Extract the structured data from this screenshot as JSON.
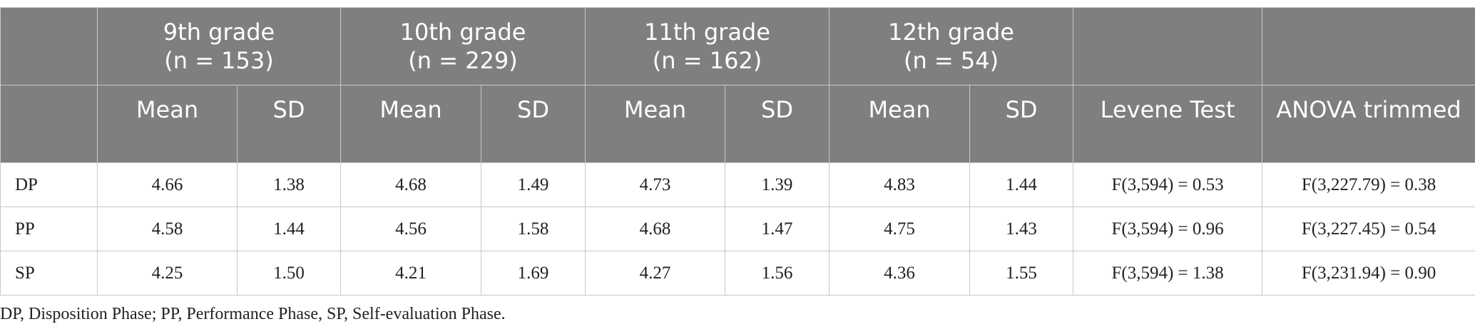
{
  "header": {
    "grades": [
      {
        "label": "9th grade",
        "n": "(n = 153)"
      },
      {
        "label": "10th grade",
        "n": "(n = 229)"
      },
      {
        "label": "11th grade",
        "n": "(n = 162)"
      },
      {
        "label": "12th grade",
        "n": "(n = 54)"
      }
    ],
    "subheaders": [
      "Mean",
      "SD",
      "Mean",
      "SD",
      "Mean",
      "SD",
      "Mean",
      "SD",
      "Levene Test",
      "ANOVA trimmed"
    ]
  },
  "table": {
    "rows": [
      [
        "DP",
        "4.66",
        "1.38",
        "4.68",
        "1.49",
        "4.73",
        "1.39",
        "4.83",
        "1.44",
        "F(3,594) = 0.53",
        "F(3,227.79) = 0.38"
      ],
      [
        "PP",
        "4.58",
        "1.44",
        "4.56",
        "1.58",
        "4.68",
        "1.47",
        "4.75",
        "1.43",
        "F(3,594) = 0.96",
        "F(3,227.45) = 0.54"
      ],
      [
        "SP",
        "4.25",
        "1.50",
        "4.21",
        "1.69",
        "4.27",
        "1.56",
        "4.36",
        "1.55",
        "F(3,594) = 1.38",
        "F(3,231.94) = 0.90"
      ]
    ]
  },
  "footnote": "DP, Disposition Phase; PP, Performance Phase, SP, Self-evaluation Phase."
}
